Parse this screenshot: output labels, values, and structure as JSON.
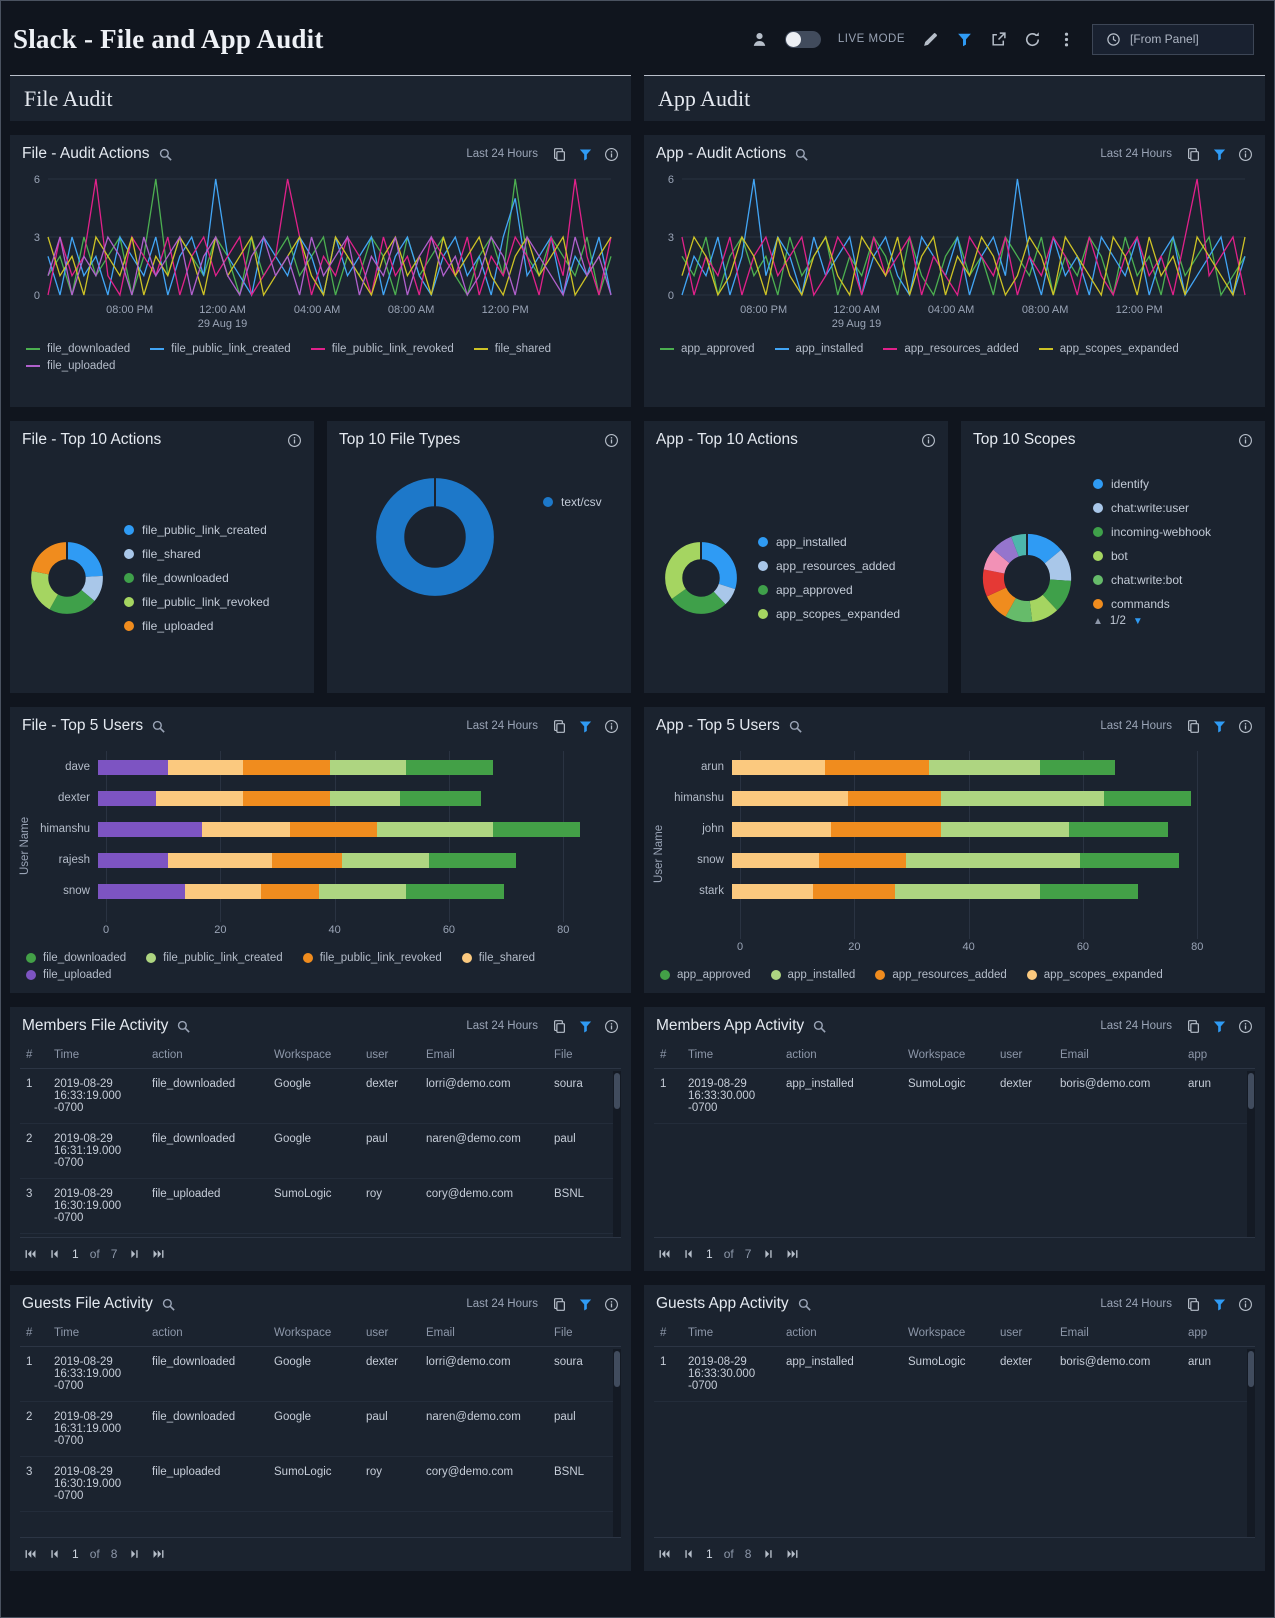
{
  "header": {
    "title": "Slack - File and App Audit",
    "live_mode_label": "LIVE MODE",
    "time_selector": "[From Panel]"
  },
  "sections": {
    "file": "File Audit",
    "app": "App Audit"
  },
  "panels": {
    "file_audit_actions": {
      "title": "File - Audit Actions",
      "time_range": "Last 24 Hours"
    },
    "app_audit_actions": {
      "title": "App - Audit Actions",
      "time_range": "Last 24 Hours"
    },
    "file_top10_actions": {
      "title": "File - Top 10 Actions"
    },
    "top10_file_types": {
      "title": "Top 10 File Types"
    },
    "app_top10_actions": {
      "title": "App - Top 10 Actions"
    },
    "top10_scopes": {
      "title": "Top 10 Scopes",
      "legend_pager": "1/2"
    },
    "file_top5_users": {
      "title": "File - Top 5 Users",
      "time_range": "Last 24 Hours"
    },
    "app_top5_users": {
      "title": "App - Top 5 Users",
      "time_range": "Last 24 Hours"
    },
    "members_file_activity": {
      "title": "Members File Activity",
      "time_range": "Last 24 Hours",
      "page": "1",
      "of": "of",
      "total_pages": "7"
    },
    "guests_file_activity": {
      "title": "Guests File Activity",
      "time_range": "Last 24 Hours",
      "page": "1",
      "of": "of",
      "total_pages": "8"
    },
    "members_app_activity": {
      "title": "Members App Activity",
      "time_range": "Last 24 Hours",
      "page": "1",
      "of": "of",
      "total_pages": "7"
    },
    "guests_app_activity": {
      "title": "Guests App Activity",
      "time_range": "Last 24 Hours",
      "page": "1",
      "of": "of",
      "total_pages": "8"
    }
  },
  "tables": {
    "members_file_activity": {
      "headers": [
        "#",
        "Time",
        "action",
        "Workspace",
        "user",
        "Email",
        "File"
      ],
      "rows": [
        [
          "1",
          "2019-08-29 16:33:19.000 -0700",
          "file_downloaded",
          "Google",
          "dexter",
          "lorri@demo.com",
          "soura"
        ],
        [
          "2",
          "2019-08-29 16:31:19.000 -0700",
          "file_downloaded",
          "Google",
          "paul",
          "naren@demo.com",
          "paul"
        ],
        [
          "3",
          "2019-08-29 16:30:19.000 -0700",
          "file_uploaded",
          "SumoLogic",
          "roy",
          "cory@demo.com",
          "BSNL"
        ]
      ]
    },
    "guests_file_activity": {
      "headers": [
        "#",
        "Time",
        "action",
        "Workspace",
        "user",
        "Email",
        "File"
      ],
      "rows": [
        [
          "1",
          "2019-08-29 16:33:19.000 -0700",
          "file_downloaded",
          "Google",
          "dexter",
          "lorri@demo.com",
          "soura"
        ],
        [
          "2",
          "2019-08-29 16:31:19.000 -0700",
          "file_downloaded",
          "Google",
          "paul",
          "naren@demo.com",
          "paul"
        ],
        [
          "3",
          "2019-08-29 16:30:19.000 -0700",
          "file_uploaded",
          "SumoLogic",
          "roy",
          "cory@demo.com",
          "BSNL"
        ]
      ]
    },
    "members_app_activity": {
      "headers": [
        "#",
        "Time",
        "action",
        "Workspace",
        "user",
        "Email",
        "app"
      ],
      "rows": [
        [
          "1",
          "2019-08-29 16:33:30.000 -0700",
          "app_installed",
          "SumoLogic",
          "dexter",
          "boris@demo.com",
          "arun"
        ]
      ]
    },
    "guests_app_activity": {
      "headers": [
        "#",
        "Time",
        "action",
        "Workspace",
        "user",
        "Email",
        "app"
      ],
      "rows": [
        [
          "1",
          "2019-08-29 16:33:30.000 -0700",
          "app_installed",
          "SumoLogic",
          "dexter",
          "boris@demo.com",
          "arun"
        ]
      ]
    }
  },
  "chart_data": [
    {
      "id": "file_audit_actions",
      "type": "line",
      "title": "File - Audit Actions",
      "ylim": [
        0,
        6
      ],
      "y_ticks": [
        0,
        3,
        6
      ],
      "grid": true,
      "legend_position": "bottom",
      "x_ticks": [
        {
          "label": "08:00 PM",
          "pos": 0.145
        },
        {
          "label": "12:00 AM",
          "sub": "29 Aug 19",
          "pos": 0.31
        },
        {
          "label": "04:00 AM",
          "pos": 0.478
        },
        {
          "label": "08:00 AM",
          "pos": 0.645
        },
        {
          "label": "12:00 PM",
          "pos": 0.812
        }
      ],
      "series": [
        {
          "name": "file_downloaded",
          "color": "#4caf50",
          "values": [
            1,
            2,
            0,
            3,
            1,
            2,
            3,
            0,
            2,
            6,
            1,
            3,
            2,
            1,
            3,
            2,
            0,
            3,
            1,
            2,
            3,
            1,
            2,
            3,
            0,
            2,
            1,
            3,
            2,
            0,
            3,
            1,
            2,
            3,
            1,
            0,
            2,
            3,
            1,
            6,
            2,
            1,
            3,
            2,
            1,
            3,
            0,
            2
          ]
        },
        {
          "name": "file_public_link_created",
          "color": "#42a5f5",
          "values": [
            2,
            0,
            3,
            1,
            2,
            0,
            3,
            2,
            1,
            3,
            0,
            2,
            3,
            1,
            6,
            2,
            1,
            0,
            3,
            2,
            1,
            3,
            2,
            0,
            3,
            1,
            2,
            3,
            0,
            2,
            3,
            1,
            0,
            2,
            3,
            1,
            2,
            0,
            3,
            5,
            1,
            2,
            3,
            0,
            2,
            1,
            3,
            0
          ]
        },
        {
          "name": "file_public_link_revoked",
          "color": "#e0218a",
          "values": [
            0,
            3,
            1,
            2,
            6,
            1,
            0,
            3,
            2,
            1,
            3,
            0,
            2,
            3,
            1,
            2,
            3,
            0,
            1,
            2,
            6,
            3,
            0,
            2,
            1,
            3,
            2,
            0,
            3,
            1,
            2,
            0,
            3,
            2,
            1,
            3,
            0,
            2,
            1,
            3,
            2,
            0,
            3,
            1,
            6,
            2,
            0,
            3
          ]
        },
        {
          "name": "file_shared",
          "color": "#cdc226",
          "values": [
            3,
            1,
            2,
            0,
            3,
            2,
            1,
            3,
            0,
            2,
            1,
            3,
            2,
            0,
            3,
            1,
            2,
            3,
            0,
            1,
            2,
            3,
            1,
            0,
            3,
            2,
            1,
            0,
            2,
            3,
            1,
            2,
            0,
            3,
            1,
            2,
            3,
            1,
            0,
            2,
            3,
            1,
            2,
            3,
            0,
            1,
            2,
            3
          ]
        },
        {
          "name": "file_uploaded",
          "color": "#b060cc",
          "values": [
            1,
            3,
            0,
            2,
            1,
            3,
            2,
            0,
            3,
            1,
            2,
            3,
            0,
            2,
            3,
            1,
            0,
            2,
            3,
            1,
            2,
            0,
            3,
            1,
            2,
            3,
            0,
            2,
            1,
            3,
            0,
            2,
            3,
            1,
            2,
            0,
            1,
            3,
            2,
            0,
            3,
            2,
            1,
            0,
            3,
            1,
            2,
            0
          ]
        }
      ]
    },
    {
      "id": "app_audit_actions",
      "type": "line",
      "title": "App - Audit Actions",
      "ylim": [
        0,
        6
      ],
      "y_ticks": [
        0,
        3,
        6
      ],
      "grid": true,
      "legend_position": "bottom",
      "x_ticks": [
        {
          "label": "08:00 PM",
          "pos": 0.145
        },
        {
          "label": "12:00 AM",
          "sub": "29 Aug 19",
          "pos": 0.31
        },
        {
          "label": "04:00 AM",
          "pos": 0.478
        },
        {
          "label": "08:00 AM",
          "pos": 0.645
        },
        {
          "label": "12:00 PM",
          "pos": 0.812
        }
      ],
      "series": [
        {
          "name": "app_approved",
          "color": "#4caf50",
          "values": [
            2,
            1,
            3,
            0,
            2,
            3,
            1,
            2,
            0,
            3,
            1,
            2,
            3,
            0,
            2,
            1,
            3,
            2,
            0,
            3,
            1,
            0,
            2,
            3,
            1,
            2,
            0,
            3,
            2,
            1,
            3,
            0,
            2,
            1,
            3,
            2,
            0,
            3,
            1,
            2,
            0,
            3,
            1,
            2,
            3,
            0,
            1,
            2
          ]
        },
        {
          "name": "app_installed",
          "color": "#42a5f5",
          "values": [
            0,
            2,
            1,
            3,
            0,
            2,
            6,
            1,
            3,
            2,
            0,
            3,
            1,
            2,
            3,
            0,
            2,
            3,
            1,
            0,
            3,
            2,
            1,
            3,
            0,
            2,
            3,
            1,
            6,
            2,
            0,
            3,
            1,
            2,
            0,
            3,
            2,
            1,
            3,
            0,
            2,
            3,
            0,
            1,
            2,
            3,
            0,
            2
          ]
        },
        {
          "name": "app_resources_added",
          "color": "#e0218a",
          "values": [
            3,
            0,
            2,
            1,
            3,
            0,
            2,
            3,
            1,
            2,
            3,
            0,
            1,
            3,
            2,
            0,
            3,
            1,
            2,
            3,
            0,
            2,
            1,
            0,
            3,
            2,
            1,
            3,
            0,
            2,
            1,
            3,
            2,
            0,
            3,
            1,
            0,
            2,
            3,
            1,
            2,
            0,
            3,
            6,
            1,
            2,
            3,
            0
          ]
        },
        {
          "name": "app_scopes_expanded",
          "color": "#cdc226",
          "values": [
            1,
            3,
            2,
            0,
            1,
            3,
            2,
            0,
            3,
            1,
            0,
            2,
            3,
            1,
            0,
            3,
            2,
            1,
            3,
            0,
            2,
            3,
            0,
            2,
            1,
            3,
            2,
            0,
            1,
            3,
            2,
            0,
            3,
            2,
            1,
            0,
            3,
            2,
            0,
            3,
            1,
            2,
            0,
            3,
            2,
            1,
            0,
            3
          ]
        }
      ]
    },
    {
      "id": "file_top10_actions",
      "type": "pie",
      "title": "File - Top 10 Actions",
      "slices": [
        {
          "label": "file_public_link_created",
          "value": 24,
          "color": "#2f9bf4"
        },
        {
          "label": "file_shared",
          "value": 12,
          "color": "#a9c7e9"
        },
        {
          "label": "file_downloaded",
          "value": 22,
          "color": "#3fa04a"
        },
        {
          "label": "file_public_link_revoked",
          "value": 20,
          "color": "#a5d561"
        },
        {
          "label": "file_uploaded",
          "value": 22,
          "color": "#f08c1e"
        }
      ]
    },
    {
      "id": "top10_file_types",
      "type": "pie",
      "title": "Top 10 File Types",
      "slices": [
        {
          "label": "text/csv",
          "value": 100,
          "color": "#1d78c9"
        }
      ]
    },
    {
      "id": "app_top10_actions",
      "type": "pie",
      "title": "App - Top 10 Actions",
      "slices": [
        {
          "label": "app_installed",
          "value": 30,
          "color": "#2f9bf4"
        },
        {
          "label": "app_resources_added",
          "value": 8,
          "color": "#a9c7e9"
        },
        {
          "label": "app_approved",
          "value": 27,
          "color": "#3fa04a"
        },
        {
          "label": "app_scopes_expanded",
          "value": 35,
          "color": "#a5d561"
        }
      ]
    },
    {
      "id": "top10_scopes",
      "type": "pie",
      "title": "Top 10 Scopes",
      "legend_page": "1/2",
      "slices": [
        {
          "label": "identify",
          "value": 14,
          "color": "#2f9bf4"
        },
        {
          "label": "chat:write:user",
          "value": 12,
          "color": "#a9c7e9"
        },
        {
          "label": "incoming-webhook",
          "value": 12,
          "color": "#3fa04a"
        },
        {
          "label": "bot",
          "value": 10,
          "color": "#a5d561"
        },
        {
          "label": "chat:write:bot",
          "value": 10,
          "color": "#66bb6a"
        },
        {
          "label": "commands",
          "value": 10,
          "color": "#f08c1e"
        },
        {
          "label": "",
          "value": 10,
          "color": "#e53935"
        },
        {
          "label": "",
          "value": 8,
          "color": "#f291b6"
        },
        {
          "label": "",
          "value": 8,
          "color": "#9575cd"
        },
        {
          "label": "",
          "value": 6,
          "color": "#4db6ac"
        }
      ]
    },
    {
      "id": "file_top5_users",
      "type": "bar",
      "title": "File - Top 5 Users",
      "orientation": "horizontal",
      "stacked": true,
      "ylabel": "User Name",
      "axis_ticks": [
        0,
        20,
        40,
        60,
        80
      ],
      "axis_max": 88,
      "categories": [
        "dave",
        "dexter",
        "himanshu",
        "rajesh",
        "snow"
      ],
      "series": [
        {
          "name": "file_downloaded",
          "color": "#43a047",
          "values": [
            15,
            14,
            15,
            15,
            17
          ]
        },
        {
          "name": "file_public_link_created",
          "color": "#aed581",
          "values": [
            13,
            12,
            20,
            15,
            15
          ]
        },
        {
          "name": "file_public_link_revoked",
          "color": "#f08c1e",
          "values": [
            15,
            15,
            15,
            12,
            10
          ]
        },
        {
          "name": "file_shared",
          "color": "#fbc97f",
          "values": [
            13,
            15,
            15,
            18,
            13
          ]
        },
        {
          "name": "file_uploaded",
          "color": "#7d54c2",
          "values": [
            12,
            10,
            18,
            12,
            15
          ]
        }
      ]
    },
    {
      "id": "app_top5_users",
      "type": "bar",
      "title": "App - Top 5 Users",
      "orientation": "horizontal",
      "stacked": true,
      "ylabel": "User Name",
      "axis_ticks": [
        0,
        20,
        40,
        60,
        80
      ],
      "axis_max": 88,
      "categories": [
        "arun",
        "himanshu",
        "john",
        "snow",
        "stark"
      ],
      "series": [
        {
          "name": "app_approved",
          "color": "#43a047",
          "values": [
            13,
            15,
            17,
            17,
            17
          ]
        },
        {
          "name": "app_installed",
          "color": "#aed581",
          "values": [
            19,
            28,
            22,
            30,
            25
          ]
        },
        {
          "name": "app_resources_added",
          "color": "#f08c1e",
          "values": [
            18,
            16,
            19,
            15,
            14
          ]
        },
        {
          "name": "app_scopes_expanded",
          "color": "#fbc97f",
          "values": [
            16,
            20,
            17,
            15,
            14
          ]
        }
      ]
    }
  ]
}
